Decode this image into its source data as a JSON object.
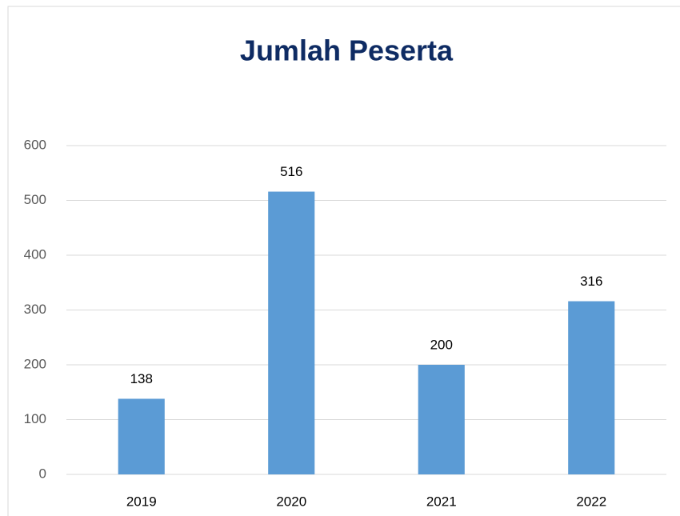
{
  "chart_data": {
    "type": "bar",
    "title": "Jumlah Peserta",
    "categories": [
      "2019",
      "2020",
      "2021",
      "2022"
    ],
    "values": [
      138,
      516,
      200,
      316
    ],
    "color": "#5b9bd5",
    "ylim": [
      0,
      600
    ],
    "yticks": [
      0,
      100,
      200,
      300,
      400,
      500,
      600
    ],
    "grid": true
  }
}
